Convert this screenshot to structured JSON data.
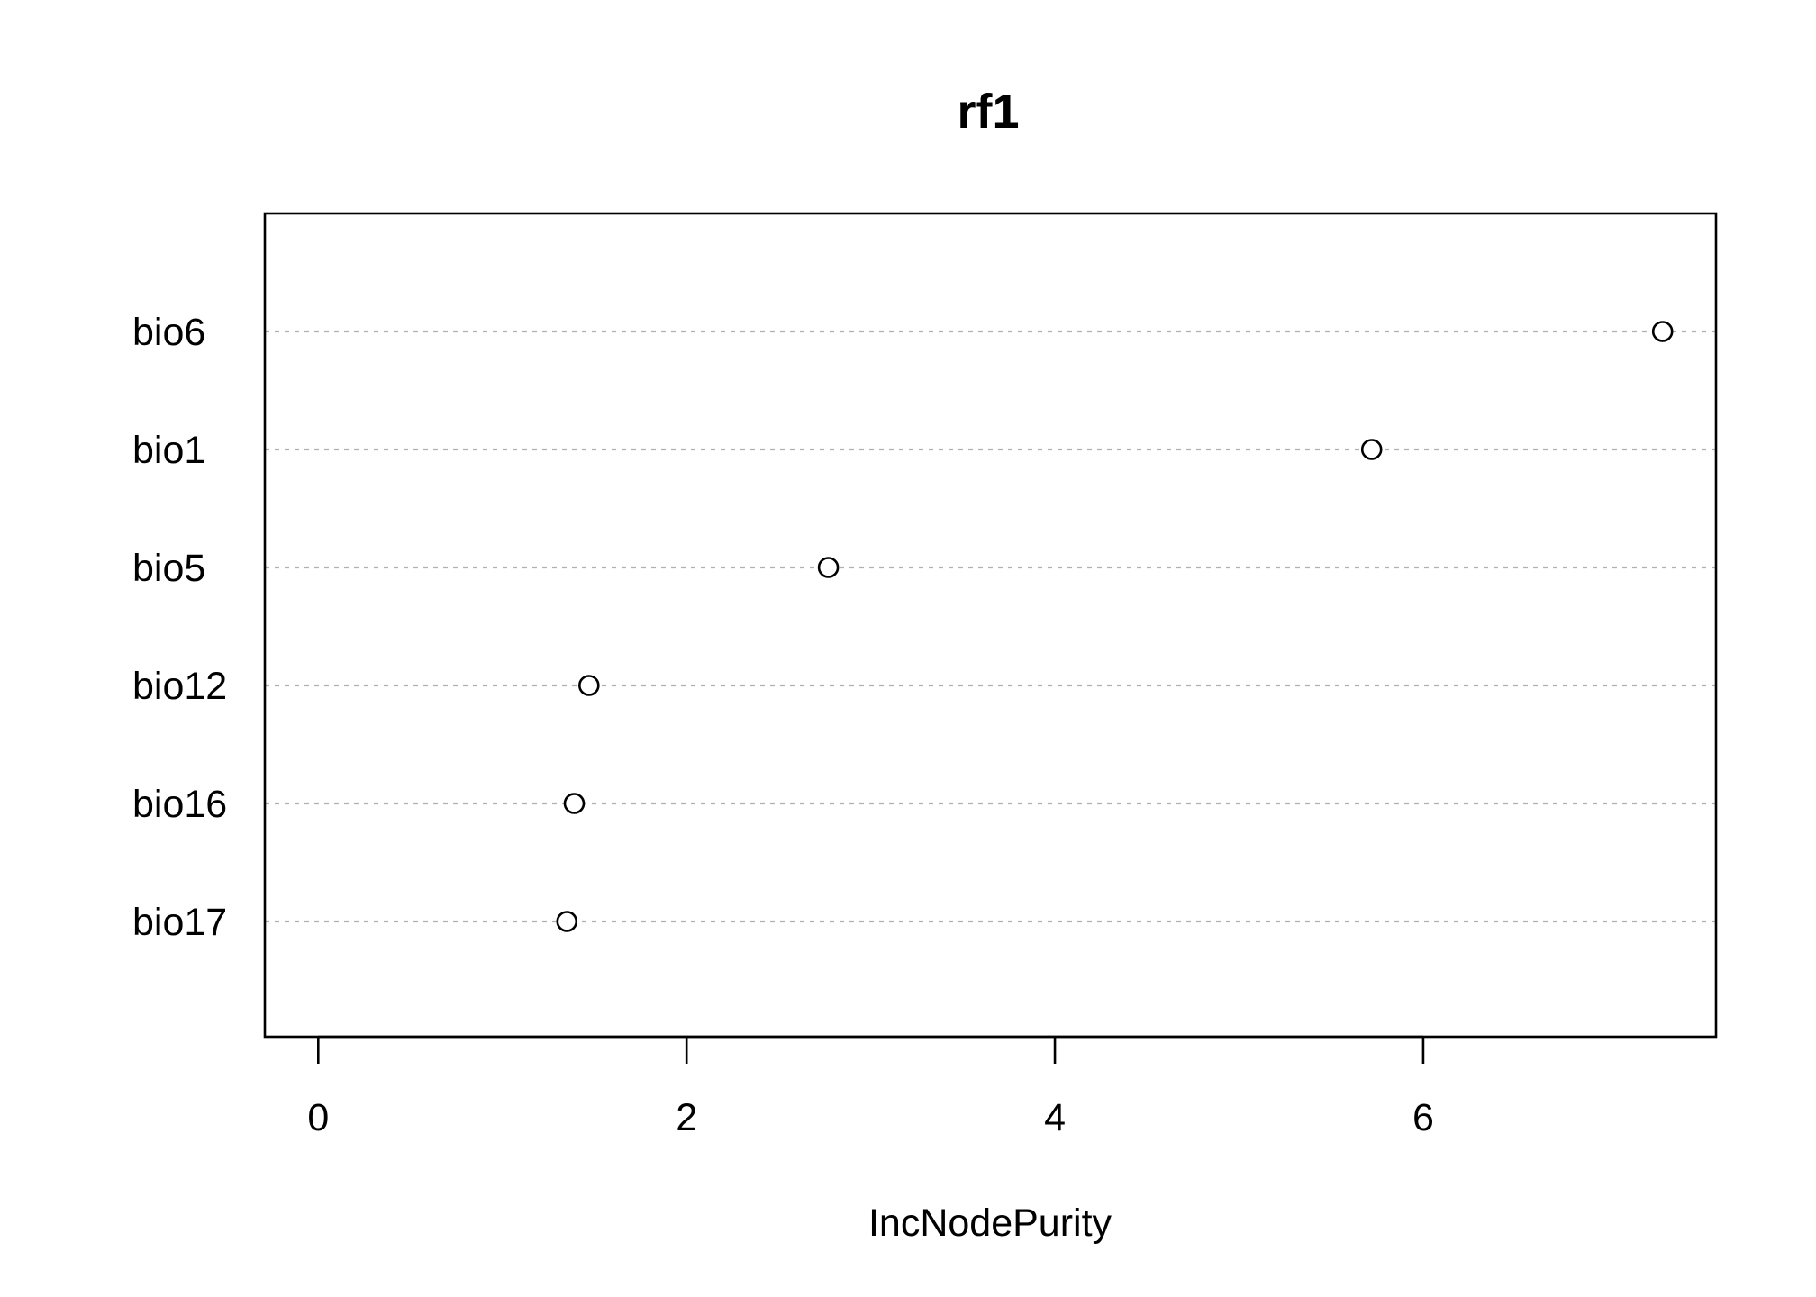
{
  "chart_data": {
    "type": "scatter",
    "title": "rf1",
    "xlabel": "IncNodePurity",
    "ylabel": "",
    "categories": [
      "bio6",
      "bio1",
      "bio5",
      "bio12",
      "bio16",
      "bio17"
    ],
    "values": [
      7.3,
      5.72,
      2.77,
      1.47,
      1.39,
      1.35
    ],
    "xlim": [
      -0.29,
      7.59
    ],
    "xticks": [
      0,
      2,
      4,
      6
    ],
    "xtick_labels": [
      "0",
      "2",
      "4",
      "6"
    ],
    "grid": false,
    "guide_lines": true,
    "point_style": "open-circle",
    "colors": {
      "points": "#000000",
      "guides": "#b0b0b0",
      "frame": "#000000"
    }
  }
}
